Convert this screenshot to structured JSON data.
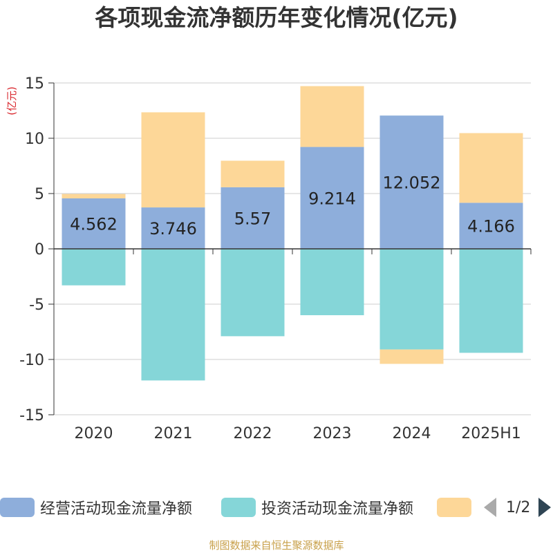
{
  "title": "各项现金流净额历年变化情况(亿元)",
  "source": "制图数据来自恒生聚源数据库",
  "colors": {
    "operating": "#8eaedb",
    "investing": "#85d6d8",
    "financing": "#fdd798",
    "axis": "#333333",
    "grid": "#cccccc",
    "unit": "#d9262c"
  },
  "chart_data": {
    "type": "bar",
    "stacked": true,
    "title": "各项现金流净额历年变化情况(亿元)",
    "ylabel": "(亿元)",
    "ylim": [
      -15,
      15
    ],
    "yticks": [
      15,
      10,
      5,
      0,
      -5,
      -10,
      -15
    ],
    "categories": [
      "2020",
      "2021",
      "2022",
      "2023",
      "2024",
      "2025H1"
    ],
    "series": [
      {
        "name": "经营活动现金流量净额",
        "values": [
          4.562,
          3.746,
          5.57,
          9.214,
          12.052,
          4.166
        ],
        "labels": [
          "4.562",
          "3.746",
          "5.57",
          "9.214",
          "12.052",
          "4.166"
        ]
      },
      {
        "name": "投资活动现金流量净额",
        "values": [
          -3.3,
          -11.9,
          -7.9,
          -6.0,
          -9.1,
          -9.4
        ]
      },
      {
        "name": "",
        "values": [
          0.4,
          8.6,
          2.4,
          5.5,
          -1.3,
          6.3
        ]
      }
    ],
    "grid": true,
    "legend": "bottom"
  },
  "legend": {
    "items": [
      {
        "label": "经营活动现金流量净额",
        "color": "#8eaedb"
      },
      {
        "label": "投资活动现金流量净额",
        "color": "#85d6d8"
      },
      {
        "label": "",
        "color": "#fdd798"
      }
    ],
    "page": "1/2"
  }
}
